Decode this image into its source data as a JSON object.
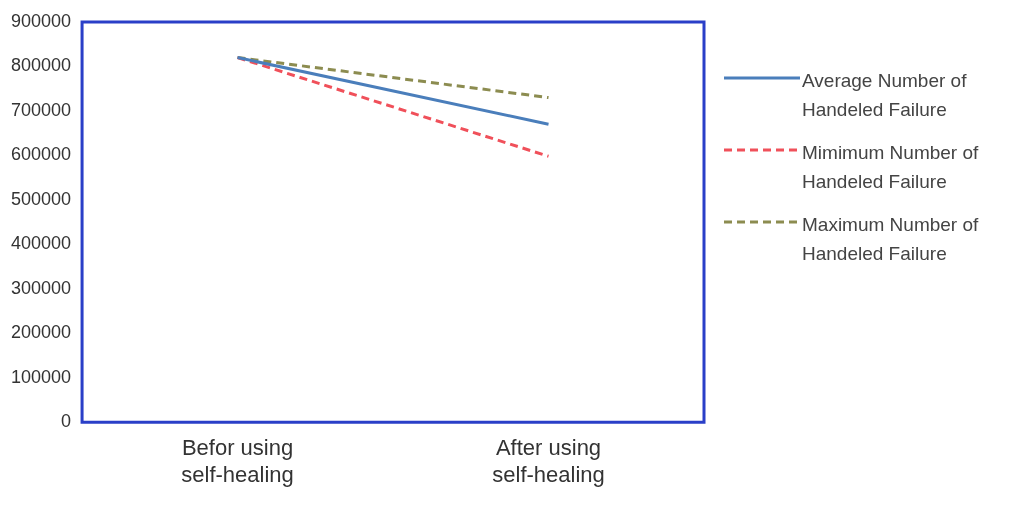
{
  "chart_data": {
    "type": "line",
    "categories": [
      "Befor using self-healing",
      "After using self-healing"
    ],
    "series": [
      {
        "name": "Average Number of Handeled Failure",
        "color": "#4a7ebb",
        "values": [
          820000,
          670000
        ],
        "line_style": "solid"
      },
      {
        "name": "Mimimum Number of Handeled Failure",
        "color": "#f0505a",
        "values": [
          820000,
          598000
        ],
        "line_style": "dashed"
      },
      {
        "name": "Maximum Number of Handeled Failure",
        "color": "#8c8c50",
        "values": [
          820000,
          730000
        ],
        "line_style": "dashed"
      }
    ],
    "ylim": [
      0,
      900000
    ],
    "yticks": [
      0,
      100000,
      200000,
      300000,
      400000,
      500000,
      600000,
      700000,
      800000,
      900000
    ],
    "grid": false,
    "legend": "right",
    "marker": "none"
  }
}
